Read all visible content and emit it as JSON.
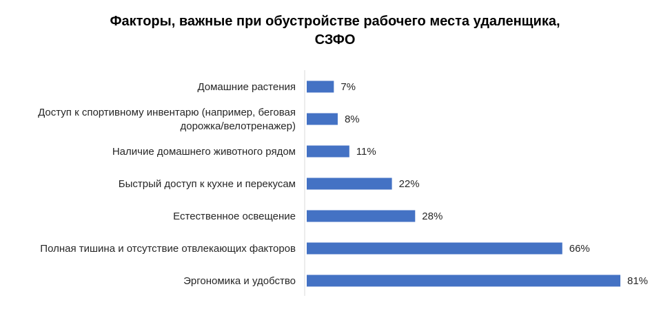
{
  "chart_data": {
    "type": "bar",
    "orientation": "horizontal",
    "title": "Факторы, важные при обустройстве рабочего места удаленщика,\nСЗФО",
    "categories": [
      "Домашние растения",
      "Доступ к  спортивному инвентарю (например, беговая дорожка/велотренажер)",
      "Наличие домашнего животного рядом",
      "Быстрый доступ к кухне и перекусам",
      "Естественное освещение",
      "Полная тишина и отсутствие отвлекающих факторов",
      "Эргономика и удобство"
    ],
    "category_lines": [
      [
        "Домашние растения"
      ],
      [
        "Доступ к  спортивному инвентарю (например, беговая",
        "дорожка/велотренажер)"
      ],
      [
        "Наличие домашнего животного рядом"
      ],
      [
        "Быстрый доступ к кухне и перекусам"
      ],
      [
        "Естественное освещение"
      ],
      [
        "Полная тишина и отсутствие отвлекающих факторов"
      ],
      [
        "Эргономика и удобство"
      ]
    ],
    "values": [
      7,
      8,
      11,
      22,
      28,
      66,
      81
    ],
    "value_labels": [
      "7%",
      "8%",
      "11%",
      "22%",
      "28%",
      "66%",
      "81%"
    ],
    "unit": "%",
    "xlim": [
      0,
      81
    ],
    "grid": false,
    "legend": "none",
    "bar_color": "#4472C4"
  }
}
